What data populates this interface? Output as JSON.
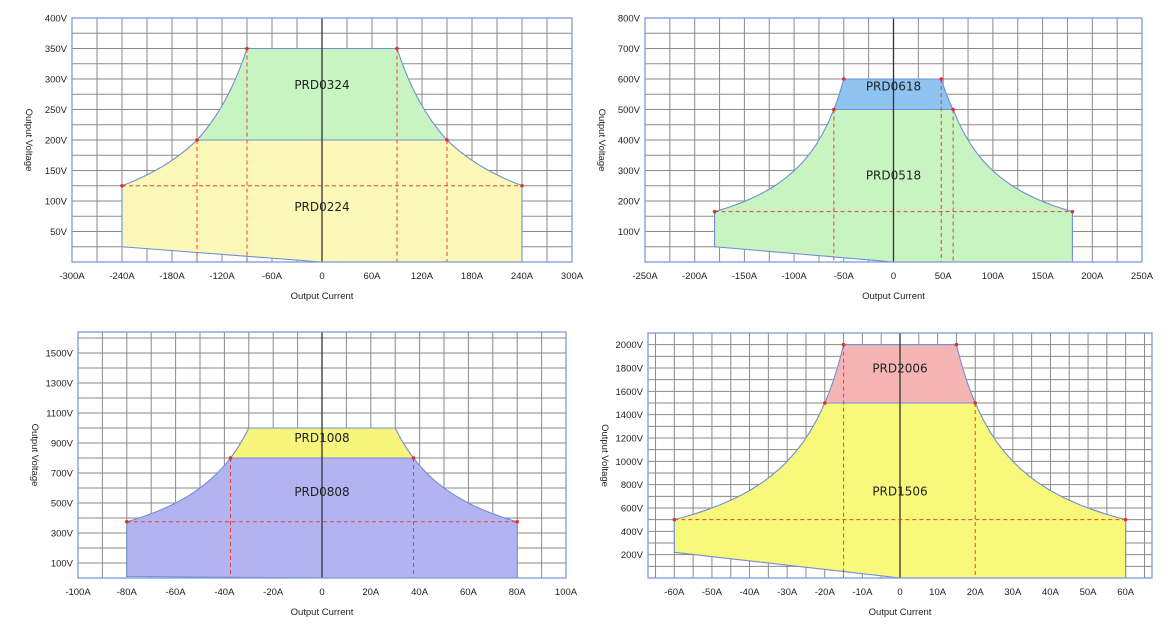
{
  "chart_data": [
    {
      "type": "area",
      "title": "",
      "xlabel": "Output Current",
      "ylabel": "Output Voltage",
      "xlim": [
        -300,
        300
      ],
      "ylim": [
        0,
        400
      ],
      "grid": true,
      "grid_step": {
        "x": 30,
        "y": 25
      },
      "x_ticks": [
        -300,
        -240,
        -180,
        -120,
        -60,
        0,
        60,
        120,
        180,
        240,
        300
      ],
      "x_tick_labels": [
        "-300A",
        "-240A",
        "-180A",
        "-120A",
        "-60A",
        "0",
        "60A",
        "120A",
        "180A",
        "240A",
        "300A"
      ],
      "y_ticks": [
        50,
        100,
        150,
        200,
        250,
        300,
        350,
        400
      ],
      "y_tick_labels": [
        "50V",
        "100V",
        "150V",
        "200V",
        "250V",
        "300V",
        "350V",
        "400V"
      ],
      "regions": [
        {
          "name": "PRD0224",
          "color": "#fcf8b8",
          "label_at": [
            0,
            90
          ],
          "boundary": [
            [
              -240,
              25,
              0
            ],
            [
              -240,
              125,
              1
            ],
            [
              -150,
              200,
              0
            ],
            [
              150,
              200,
              1
            ],
            [
              240,
              125,
              0
            ],
            [
              240,
              0,
              0
            ],
            [
              0,
              0,
              0
            ]
          ]
        },
        {
          "name": "PRD0324",
          "color": "#c8f4c2",
          "label_at": [
            0,
            290
          ],
          "boundary": [
            [
              -150,
              200,
              1
            ],
            [
              -90,
              350,
              0
            ],
            [
              90,
              350,
              1
            ],
            [
              150,
              200,
              0
            ]
          ]
        }
      ],
      "dashed_vertical": [
        [
          -150,
          200
        ],
        [
          -90,
          350
        ],
        [
          90,
          350
        ],
        [
          150,
          200
        ]
      ],
      "dashed_horizontal": [
        [
          125,
          -240,
          240
        ]
      ],
      "markers": [
        [
          -240,
          125
        ],
        [
          -150,
          200
        ],
        [
          -90,
          350
        ],
        [
          90,
          350
        ],
        [
          150,
          200
        ],
        [
          240,
          125
        ]
      ]
    },
    {
      "type": "area",
      "title": "",
      "xlabel": "Output Current",
      "ylabel": "Output Voltage",
      "xlim": [
        -250,
        250
      ],
      "ylim": [
        0,
        800
      ],
      "grid": true,
      "grid_step": {
        "x": 25,
        "y": 50
      },
      "x_ticks": [
        -250,
        -200,
        -150,
        -100,
        -50,
        0,
        50,
        100,
        150,
        200,
        250
      ],
      "x_tick_labels": [
        "-250A",
        "-200A",
        "-150A",
        "-100A",
        "-50A",
        "0",
        "50A",
        "100A",
        "150A",
        "200A",
        "250A"
      ],
      "y_ticks": [
        100,
        200,
        300,
        400,
        500,
        600,
        700,
        800
      ],
      "y_tick_labels": [
        "100V",
        "200V",
        "300V",
        "400V",
        "500V",
        "600V",
        "700V",
        "800V"
      ],
      "regions": [
        {
          "name": "PRD0518",
          "color": "#c8f4c2",
          "label_at": [
            0,
            283
          ],
          "boundary": [
            [
              -180,
              50,
              0
            ],
            [
              -180,
              165,
              1
            ],
            [
              -60,
              500,
              0
            ],
            [
              60,
              500,
              1
            ],
            [
              180,
              165,
              0
            ],
            [
              180,
              0,
              0
            ],
            [
              0,
              0,
              0
            ]
          ]
        },
        {
          "name": "PRD0618",
          "color": "#8fc3f0",
          "label_at": [
            0,
            576
          ],
          "boundary": [
            [
              -60,
              500,
              1
            ],
            [
              -50,
              600,
              0
            ],
            [
              48,
              600,
              1
            ],
            [
              60,
              500,
              0
            ]
          ]
        }
      ],
      "dashed_vertical": [
        [
          -60,
          500
        ],
        [
          48,
          600
        ],
        [
          60,
          500
        ]
      ],
      "dashed_horizontal": [
        [
          165,
          -180,
          180
        ]
      ],
      "markers": [
        [
          -180,
          165
        ],
        [
          -60,
          500
        ],
        [
          -50,
          600
        ],
        [
          48,
          600
        ],
        [
          60,
          500
        ],
        [
          180,
          165
        ]
      ]
    },
    {
      "type": "area",
      "title": "",
      "xlabel": "Output Current",
      "ylabel": "Output Voltage",
      "xlim": [
        -100,
        100
      ],
      "ylim": [
        0,
        1640
      ],
      "grid": true,
      "grid_step": {
        "x": 10,
        "y": 100
      },
      "x_ticks": [
        -100,
        -80,
        -60,
        -40,
        -20,
        0,
        20,
        40,
        60,
        80,
        100
      ],
      "x_tick_labels": [
        "-100A",
        "-80A",
        "-60A",
        "-40A",
        "-20A",
        "0",
        "20A",
        "40A",
        "60A",
        "80A",
        "100A"
      ],
      "y_ticks": [
        100,
        300,
        500,
        700,
        900,
        1100,
        1300,
        1500
      ],
      "y_tick_labels": [
        "100V",
        "300V",
        "500V",
        "700V",
        "900V",
        "1100V",
        "1300V",
        "1500V"
      ],
      "regions": [
        {
          "name": "PRD0808",
          "color": "#b3b3f2",
          "label_at": [
            0,
            573
          ],
          "boundary": [
            [
              -80,
              10,
              0
            ],
            [
              -80,
              375,
              1
            ],
            [
              -37.5,
              800,
              0
            ],
            [
              37.5,
              800,
              1
            ],
            [
              80,
              375,
              0
            ],
            [
              80,
              0,
              0
            ],
            [
              0,
              0,
              0
            ]
          ]
        },
        {
          "name": "PRD1008",
          "color": "#f7f57c",
          "label_at": [
            0,
            933
          ],
          "boundary": [
            [
              -37.5,
              800,
              1
            ],
            [
              -30,
              1000,
              0
            ],
            [
              30,
              1000,
              1
            ],
            [
              37.5,
              800,
              0
            ]
          ]
        }
      ],
      "dashed_vertical": [
        [
          -37.5,
          800
        ],
        [
          37.5,
          800
        ]
      ],
      "dashed_horizontal": [
        [
          375,
          -80,
          80
        ]
      ],
      "markers": [
        [
          -80,
          375
        ],
        [
          -37.5,
          800
        ],
        [
          37.5,
          800
        ],
        [
          80,
          375
        ]
      ]
    },
    {
      "type": "area",
      "title": "",
      "xlabel": "Output Current",
      "ylabel": "Output Voltage",
      "xlim": [
        -67,
        67
      ],
      "ylim": [
        0,
        2100
      ],
      "grid": true,
      "grid_step": {
        "x": 5,
        "y": 100
      },
      "x_ticks": [
        -60,
        -50,
        -40,
        -30,
        -20,
        -10,
        0,
        10,
        20,
        30,
        40,
        50,
        60
      ],
      "x_tick_labels": [
        "-60A",
        "-50A",
        "-40A",
        "-30A",
        "-20A",
        "-10A",
        "0",
        "10A",
        "20A",
        "30A",
        "40A",
        "50A",
        "60A"
      ],
      "y_ticks": [
        200,
        400,
        600,
        800,
        1000,
        1200,
        1400,
        1600,
        1800,
        2000
      ],
      "y_tick_labels": [
        "200V",
        "400V",
        "600V",
        "800V",
        "1000V",
        "1200V",
        "1400V",
        "1600V",
        "1800V",
        "2000V"
      ],
      "regions": [
        {
          "name": "PRD1506",
          "color": "#f8f87a",
          "label_at": [
            0,
            741
          ],
          "boundary": [
            [
              -60,
              220,
              0
            ],
            [
              -60,
              500,
              1
            ],
            [
              -20,
              1500,
              0
            ],
            [
              20,
              1500,
              1
            ],
            [
              60,
              500,
              0
            ],
            [
              60,
              0,
              0
            ],
            [
              0,
              0,
              0
            ]
          ]
        },
        {
          "name": "PRD2006",
          "color": "#f5b5b5",
          "label_at": [
            0,
            1795
          ],
          "boundary": [
            [
              -20,
              1500,
              1
            ],
            [
              -15,
              2000,
              0
            ],
            [
              15,
              2000,
              1
            ],
            [
              20,
              1500,
              0
            ]
          ]
        }
      ],
      "dashed_vertical": [
        [
          -15,
          2000
        ],
        [
          20,
          1500
        ]
      ],
      "dashed_horizontal": [
        [
          500,
          -60,
          60
        ]
      ],
      "markers": [
        [
          -60,
          500
        ],
        [
          -20,
          1500
        ],
        [
          -15,
          2000
        ],
        [
          15,
          2000
        ],
        [
          20,
          1500
        ],
        [
          60,
          500
        ]
      ]
    }
  ]
}
